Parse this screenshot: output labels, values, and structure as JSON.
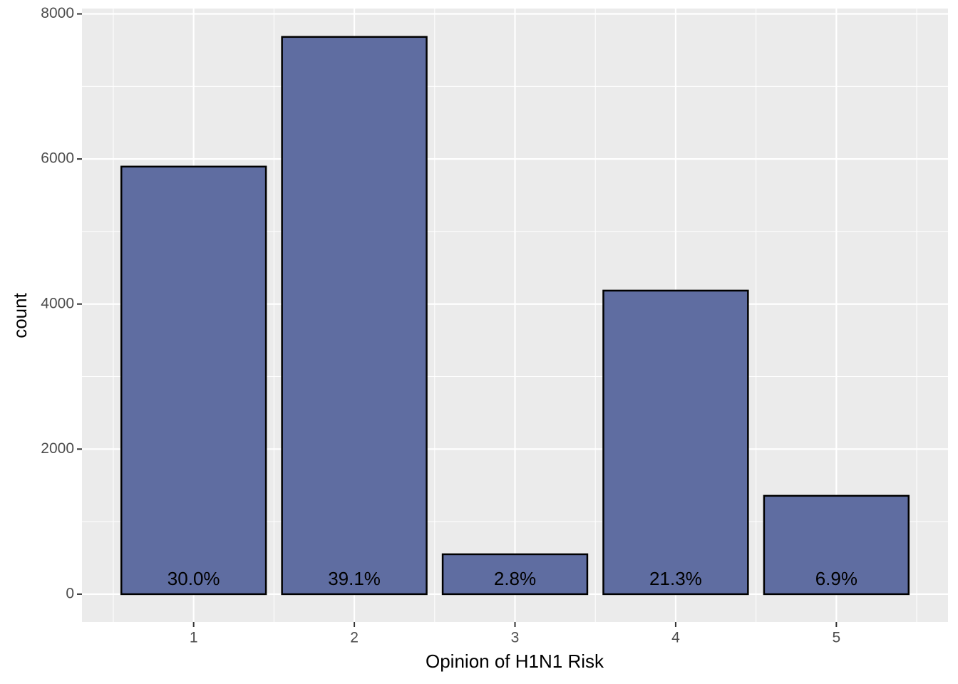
{
  "chart_data": {
    "type": "bar",
    "x_label": "Opinion of H1N1 Risk",
    "y_label": "count",
    "x": [
      1,
      2,
      3,
      4,
      5
    ],
    "values": [
      5895,
      7683,
      550,
      4185,
      1356
    ],
    "bar_labels": [
      "30.0%",
      "39.1%",
      "2.8%",
      "21.3%",
      "6.9%"
    ],
    "color": "#5f6da1",
    "edge_color": "#000000",
    "xlim": [
      0.305,
      5.695
    ],
    "xticks": [
      1,
      2,
      3,
      4,
      5
    ],
    "ylim": [
      -384,
      8074
    ],
    "yticks": [
      0,
      2000,
      4000,
      6000,
      8000
    ],
    "grid": true,
    "minor_grid": true
  }
}
